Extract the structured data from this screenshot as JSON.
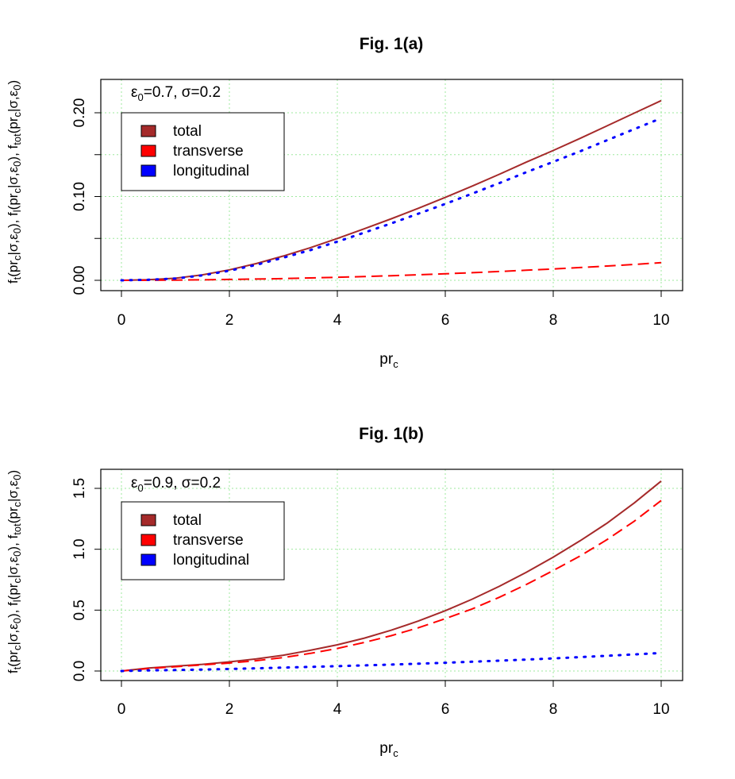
{
  "charts": [
    {
      "title": "Fig. 1(a)",
      "annotation": {
        "eps": "ε",
        "eps_sub": "0",
        "rest": "=0.7, σ=0.2"
      },
      "xlabel": {
        "main": "pr",
        "sub": "c"
      },
      "ylabel": "f_t(pr_c|σ,ε_0), f_l(pr_c|σ,ε_0), f_tot(pr_c|σ,ε_0)",
      "x_ticks": [
        "0",
        "2",
        "4",
        "6",
        "8",
        "10"
      ],
      "y_ticks": [
        "0.00",
        "0.10",
        "0.20"
      ],
      "legend": [
        {
          "label": "total",
          "color": "#a52a2a"
        },
        {
          "label": "transverse",
          "color": "#ff0000"
        },
        {
          "label": "longitudinal",
          "color": "#0000ff"
        }
      ]
    },
    {
      "title": "Fig. 1(b)",
      "annotation": {
        "eps": "ε",
        "eps_sub": "0",
        "rest": "=0.9, σ=0.2"
      },
      "xlabel": {
        "main": "pr",
        "sub": "c"
      },
      "ylabel": "f_t(pr_c|σ,ε_0), f_l(pr_c|σ,ε_0), f_tot(pr_c|σ,ε_0)",
      "x_ticks": [
        "0",
        "2",
        "4",
        "6",
        "8",
        "10"
      ],
      "y_ticks": [
        "0.0",
        "0.5",
        "1.0",
        "1.5"
      ],
      "legend": [
        {
          "label": "total",
          "color": "#a52a2a"
        },
        {
          "label": "transverse",
          "color": "#ff0000"
        },
        {
          "label": "longitudinal",
          "color": "#0000ff"
        }
      ]
    }
  ],
  "chart_data": [
    {
      "type": "line",
      "title": "Fig. 1(a)",
      "xlabel": "pr_c",
      "ylabel": "f_t(pr_c|σ,ε_0), f_l(pr_c|σ,ε_0), f_tot(pr_c|σ,ε_0)",
      "xlim": [
        0,
        10
      ],
      "ylim": [
        0,
        0.22
      ],
      "grid": true,
      "legend_position": "top-left",
      "x": [
        0,
        0.5,
        1,
        1.5,
        2,
        2.5,
        3,
        3.5,
        4,
        4.5,
        5,
        5.5,
        6,
        6.5,
        7,
        7.5,
        8,
        8.5,
        9,
        9.5,
        10
      ],
      "series": [
        {
          "name": "total",
          "color": "#a52a2a",
          "style": "solid",
          "values": [
            0,
            0.0008,
            0.0025,
            0.0065,
            0.0125,
            0.02,
            0.029,
            0.039,
            0.05,
            0.0615,
            0.0735,
            0.086,
            0.099,
            0.1125,
            0.1265,
            0.141,
            0.155,
            0.1695,
            0.1845,
            0.1995,
            0.2145
          ]
        },
        {
          "name": "transverse",
          "color": "#ff0000",
          "style": "dashed",
          "values": [
            0,
            0.0001,
            0.0003,
            0.0006,
            0.001,
            0.0015,
            0.0021,
            0.0028,
            0.0036,
            0.0045,
            0.0055,
            0.0066,
            0.0078,
            0.0091,
            0.0105,
            0.012,
            0.0136,
            0.0153,
            0.0171,
            0.019,
            0.021
          ]
        },
        {
          "name": "longitudinal",
          "color": "#0000ff",
          "style": "dotted",
          "values": [
            0,
            0.0007,
            0.0022,
            0.0059,
            0.0115,
            0.0185,
            0.027,
            0.036,
            0.0462,
            0.057,
            0.068,
            0.0795,
            0.0912,
            0.1035,
            0.116,
            0.129,
            0.1414,
            0.154,
            0.1673,
            0.1805,
            0.1935
          ]
        }
      ]
    },
    {
      "type": "line",
      "title": "Fig. 1(b)",
      "xlabel": "pr_c",
      "ylabel": "f_t(pr_c|σ,ε_0), f_l(pr_c|σ,ε_0), f_tot(pr_c|σ,ε_0)",
      "xlim": [
        0,
        10
      ],
      "ylim": [
        0,
        1.6
      ],
      "grid": true,
      "legend_position": "top-left",
      "x": [
        0,
        0.5,
        1,
        1.5,
        2,
        2.5,
        3,
        3.5,
        4,
        4.5,
        5,
        5.5,
        6,
        6.5,
        7,
        7.5,
        8,
        8.5,
        9,
        9.5,
        10
      ],
      "series": [
        {
          "name": "total",
          "color": "#a52a2a",
          "style": "solid",
          "values": [
            0,
            0.025,
            0.04,
            0.055,
            0.075,
            0.1,
            0.13,
            0.17,
            0.215,
            0.27,
            0.335,
            0.41,
            0.495,
            0.59,
            0.695,
            0.81,
            0.935,
            1.07,
            1.215,
            1.38,
            1.56
          ]
        },
        {
          "name": "transverse",
          "color": "#ff0000",
          "style": "dashed",
          "values": [
            0,
            0.02,
            0.035,
            0.05,
            0.065,
            0.085,
            0.11,
            0.145,
            0.185,
            0.235,
            0.29,
            0.355,
            0.43,
            0.51,
            0.605,
            0.71,
            0.825,
            0.945,
            1.08,
            1.23,
            1.4
          ]
        },
        {
          "name": "longitudinal",
          "color": "#0000ff",
          "style": "dotted",
          "values": [
            0,
            0.005,
            0.008,
            0.012,
            0.017,
            0.022,
            0.028,
            0.034,
            0.04,
            0.046,
            0.053,
            0.06,
            0.068,
            0.076,
            0.085,
            0.094,
            0.104,
            0.114,
            0.125,
            0.136,
            0.148
          ]
        }
      ]
    }
  ]
}
